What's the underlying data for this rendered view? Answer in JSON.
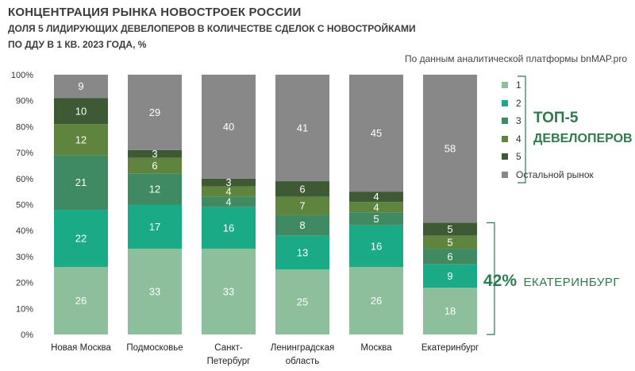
{
  "header": {
    "title": "КОНЦЕНТРАЦИЯ РЫНКА НОВОСТРОЕК РОССИИ",
    "subtitle_line1": "ДОЛЯ 5 ЛИДИРУЮЩИХ ДЕВЕЛОПЕРОВ В КОЛИЧЕСТВЕ СДЕЛОК С НОВОСТРОЙКАМИ",
    "subtitle_line2": "ПО ДДУ В 1 КВ. 2023 ГОДА, %",
    "source": "По данным аналитической платформы bnMAP.pro"
  },
  "chart_data": {
    "type": "bar",
    "stacked": true,
    "title": "КОНЦЕНТРАЦИЯ РЫНКА НОВОСТРОЕК РОССИИ",
    "categories": [
      [
        "Новая Москва"
      ],
      [
        "Подмосковье"
      ],
      [
        "Санкт-",
        "Петербург"
      ],
      [
        "Ленинградская",
        "область"
      ],
      [
        "Москва"
      ],
      [
        "Екатеринбург"
      ]
    ],
    "ylim": [
      0,
      100
    ],
    "yticks": [
      "0%",
      "10%",
      "20%",
      "30%",
      "40%",
      "50%",
      "60%",
      "70%",
      "80%",
      "90%",
      "100%"
    ],
    "grid": false,
    "legend_position": "right",
    "series": [
      {
        "name": "1",
        "color": "#8dbf9d",
        "values": [
          26,
          33,
          33,
          25,
          26,
          18
        ]
      },
      {
        "name": "2",
        "color": "#1aab86",
        "values": [
          22,
          17,
          16,
          13,
          16,
          9
        ]
      },
      {
        "name": "3",
        "color": "#3f8a63",
        "values": [
          21,
          12,
          4,
          8,
          5,
          6
        ]
      },
      {
        "name": "4",
        "color": "#5e843e",
        "values": [
          12,
          6,
          4,
          7,
          4,
          5
        ]
      },
      {
        "name": "5",
        "color": "#3d5a34",
        "values": [
          10,
          3,
          3,
          6,
          4,
          5
        ]
      },
      {
        "name": "Остальной рынок",
        "color": "#888888",
        "values": [
          9,
          29,
          40,
          41,
          45,
          58
        ]
      }
    ]
  },
  "annotations": {
    "top5_line1": "ТОП-5",
    "top5_line2": "ДЕВЕЛОПЕРОВ",
    "callout_pct": "42%",
    "callout_city": "ЕКАТЕРИНБУРГ",
    "accent_color": "#2f7a4d"
  }
}
